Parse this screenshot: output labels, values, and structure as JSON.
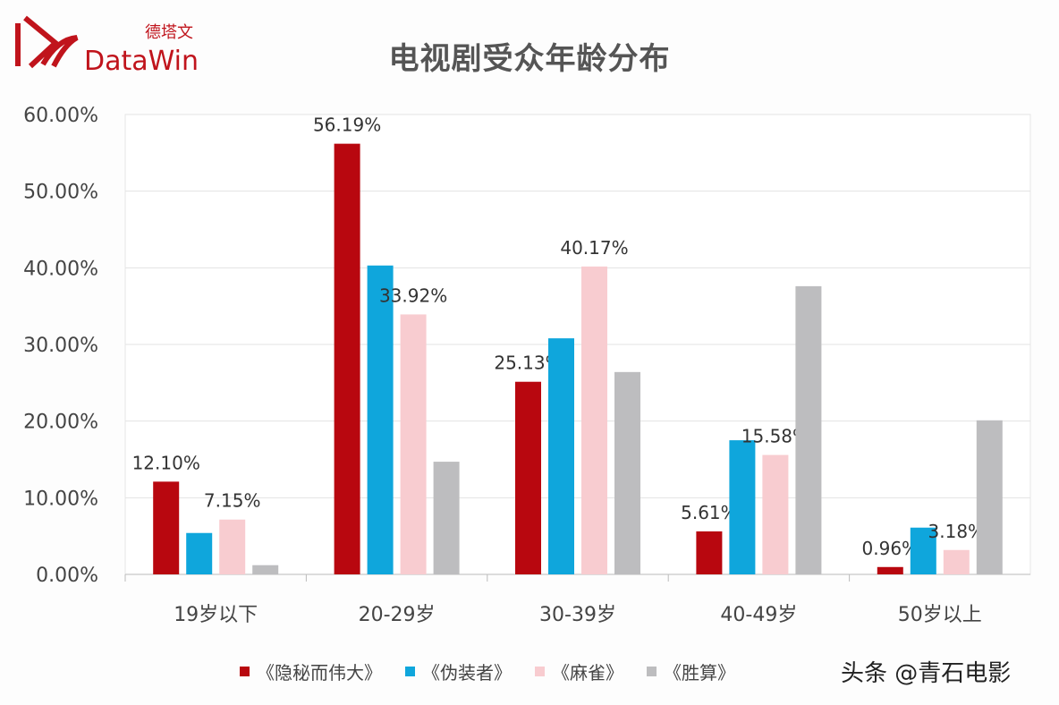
{
  "logo": {
    "text_cn": "德塔文",
    "text_en": "DataWin",
    "color": "#c0141c"
  },
  "watermark": "头条 @青石电影",
  "chart_data": {
    "type": "bar",
    "title": "电视剧受众年龄分布",
    "categories": [
      "19岁以下",
      "20-29岁",
      "30-39岁",
      "40-49岁",
      "50岁以上"
    ],
    "ylim": [
      0,
      60
    ],
    "yticks": [
      "0.00%",
      "10.00%",
      "20.00%",
      "30.00%",
      "40.00%",
      "50.00%",
      "60.00%"
    ],
    "grid": true,
    "legend_position": "bottom",
    "series": [
      {
        "name": "《隐秘而伟大》",
        "color": "#b8070f",
        "values": [
          12.1,
          56.19,
          25.13,
          5.61,
          0.96
        ],
        "labels": [
          "12.10%",
          "56.19%",
          "25.13%",
          "5.61%",
          "0.96%"
        ]
      },
      {
        "name": "《伪装者》",
        "color": "#0fa6dc",
        "values": [
          5.4,
          40.3,
          30.8,
          17.5,
          6.1
        ],
        "labels": [
          "",
          "",
          "",
          "",
          ""
        ]
      },
      {
        "name": "《麻雀》",
        "color": "#f8ccd0",
        "values": [
          7.15,
          33.92,
          40.17,
          15.58,
          3.18
        ],
        "labels": [
          "7.15%",
          "33.92%",
          "40.17%",
          "15.58%",
          "3.18%"
        ]
      },
      {
        "name": "《胜算》",
        "color": "#bdbdbf",
        "values": [
          1.2,
          14.7,
          26.4,
          37.6,
          20.1
        ],
        "labels": [
          "",
          "",
          "",
          "",
          ""
        ]
      }
    ]
  }
}
